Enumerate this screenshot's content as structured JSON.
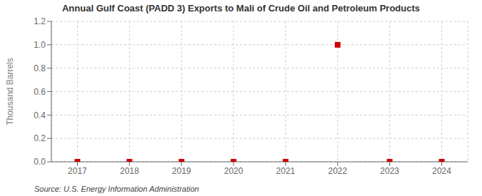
{
  "chart_data": {
    "type": "scatter",
    "title": "Annual Gulf Coast (PADD 3) Exports to Mali of Crude Oil and Petroleum Products",
    "ylabel": "Thousand Barrels",
    "source": "Source: U.S. Energy Information Administration",
    "x": [
      2017,
      2018,
      2019,
      2020,
      2021,
      2022,
      2023,
      2024
    ],
    "values": [
      0,
      0.0,
      0,
      0.0,
      0.0,
      1.0,
      0.0,
      0.0
    ],
    "color": "#cc0000",
    "marker": "square",
    "xlim": [
      2016.5,
      2024.5
    ],
    "xticks": [
      2017,
      2018,
      2019,
      2020,
      2021,
      2022,
      2023,
      2024
    ],
    "ylim": [
      0,
      1.2
    ],
    "yticks": [
      {
        "value": 0,
        "label": "0.0"
      },
      0.2,
      0.4,
      0.6,
      0.8,
      {
        "value": 1,
        "label": "1.0"
      },
      1.2
    ],
    "grid": true
  }
}
